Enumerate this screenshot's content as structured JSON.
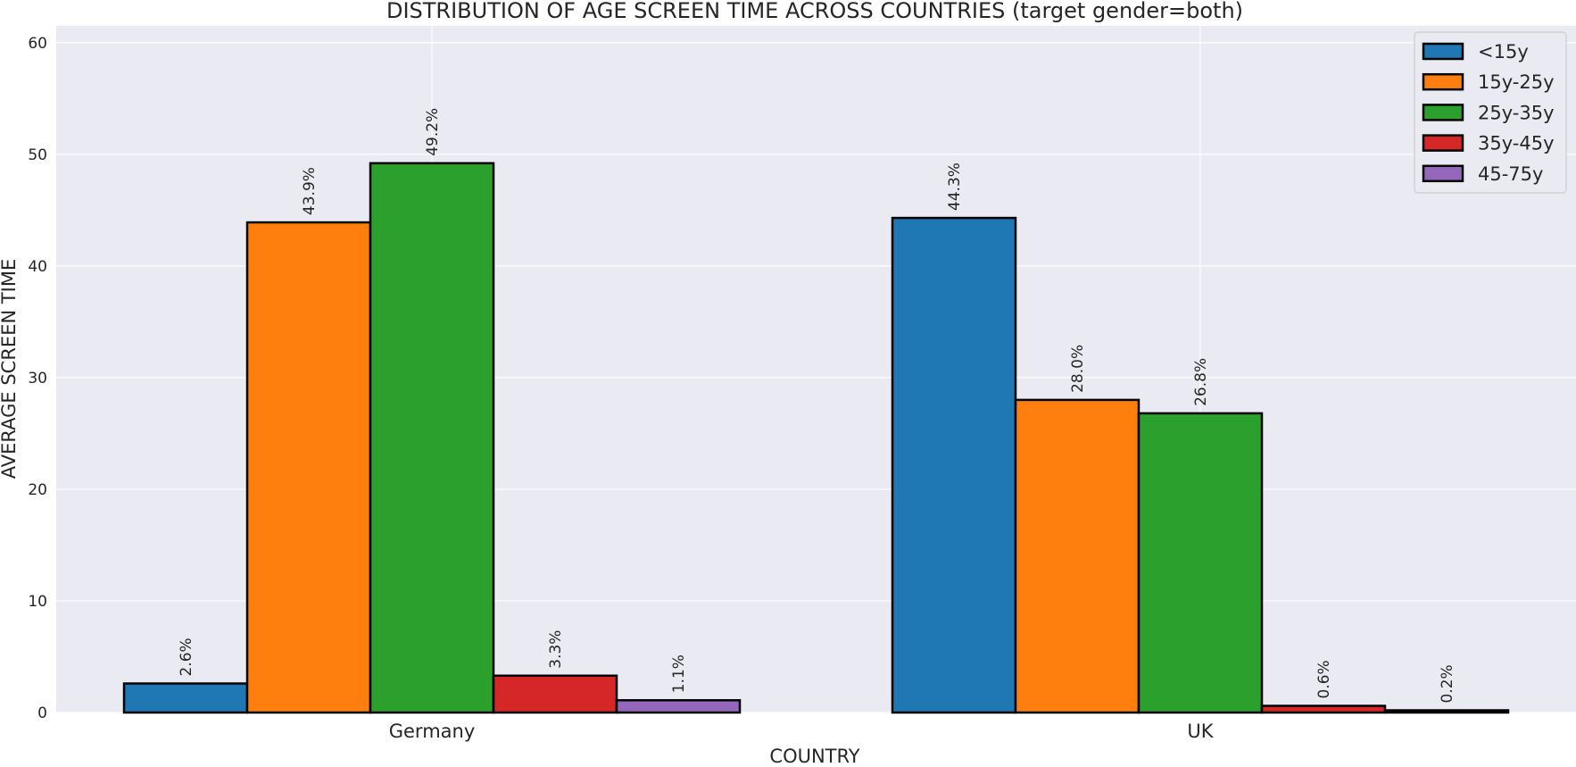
{
  "chart_data": {
    "type": "bar",
    "title": "DISTRIBUTION OF AGE SCREEN TIME ACROSS COUNTRIES (target gender=both)",
    "xlabel": "COUNTRY",
    "ylabel": "AVERAGE SCREEN TIME",
    "categories": [
      "Germany",
      "UK"
    ],
    "ylim": [
      0,
      61.5
    ],
    "yticks": [
      0,
      10,
      20,
      30,
      40,
      50,
      60
    ],
    "grid": true,
    "legend_position": "top-right",
    "series": [
      {
        "name": "<15y",
        "color": "#1f77b4",
        "values": [
          2.6,
          44.3
        ],
        "labels": [
          "2.6%",
          "44.3%"
        ]
      },
      {
        "name": "15y-25y",
        "color": "#ff7f0e",
        "values": [
          43.9,
          28.0
        ],
        "labels": [
          "43.9%",
          "28.0%"
        ]
      },
      {
        "name": "25y-35y",
        "color": "#2ca02c",
        "values": [
          49.2,
          26.8
        ],
        "labels": [
          "49.2%",
          "26.8%"
        ]
      },
      {
        "name": "35y-45y",
        "color": "#d62728",
        "values": [
          3.3,
          0.6
        ],
        "labels": [
          "3.3%",
          "0.6%"
        ]
      },
      {
        "name": "45-75y",
        "color": "#9467bd",
        "values": [
          1.1,
          0.2
        ],
        "labels": [
          "1.1%",
          "0.2%"
        ]
      }
    ]
  }
}
